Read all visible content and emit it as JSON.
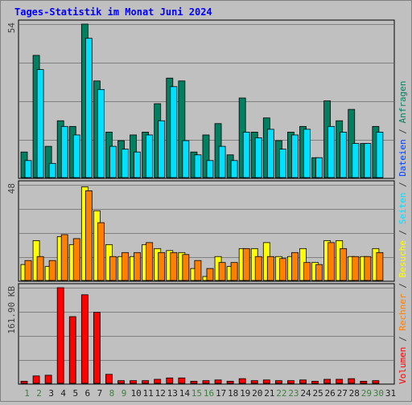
{
  "chart_data": [
    {
      "type": "bar",
      "title": "Tages-Statistik im Monat Juni 2024",
      "categories": [
        "1",
        "2",
        "3",
        "4",
        "5",
        "6",
        "7",
        "8",
        "9",
        "10",
        "11",
        "12",
        "13",
        "14",
        "15",
        "16",
        "17",
        "18",
        "19",
        "20",
        "21",
        "22",
        "23",
        "24",
        "25",
        "26",
        "27",
        "28",
        "29",
        "30",
        "31"
      ],
      "weekend_days": [
        "1",
        "2",
        "8",
        "9",
        "15",
        "16",
        "22",
        "23",
        "29",
        "30"
      ],
      "ymax_label": "54",
      "ylim": [
        0,
        54
      ],
      "series": [
        {
          "name": "Anfragen",
          "values": [
            9,
            43,
            11,
            20,
            18,
            54,
            34,
            16,
            13,
            15,
            16,
            26,
            35,
            34,
            9,
            15,
            19,
            8,
            28,
            16,
            21,
            13,
            16,
            18,
            7,
            27,
            20,
            24,
            12,
            18,
            null
          ]
        },
        {
          "name": "Dateien",
          "values": [
            6,
            38,
            5,
            18,
            15,
            49,
            31,
            11,
            10,
            9,
            15,
            20,
            32,
            13,
            8,
            6,
            11,
            6,
            16,
            14,
            17,
            10,
            15,
            17,
            7,
            18,
            16,
            12,
            12,
            16,
            null
          ]
        }
      ],
      "colors": {
        "Anfragen": "#008060",
        "Dateien": "#00e0ff"
      }
    },
    {
      "type": "bar",
      "ymax_label": "48",
      "ylim": [
        0,
        48
      ],
      "series": [
        {
          "name": "Seiten",
          "values": [
            8,
            20,
            7,
            22,
            18,
            47,
            35,
            18,
            12,
            12,
            18,
            16,
            15,
            14,
            6,
            2,
            12,
            7,
            16,
            16,
            19,
            12,
            12,
            16,
            9,
            20,
            20,
            12,
            12,
            16,
            null
          ]
        },
        {
          "name": "Besuche",
          "values": [
            10,
            12,
            10,
            23,
            21,
            45,
            29,
            12,
            14,
            14,
            19,
            14,
            14,
            13,
            10,
            6,
            9,
            9,
            16,
            12,
            12,
            11,
            14,
            9,
            8,
            19,
            16,
            12,
            12,
            14,
            null
          ]
        },
        {
          "name": "Rechner",
          "values": [
            10,
            12,
            10,
            23,
            21,
            45,
            29,
            12,
            14,
            14,
            19,
            14,
            14,
            13,
            10,
            6,
            9,
            9,
            16,
            12,
            12,
            11,
            14,
            9,
            8,
            19,
            16,
            12,
            12,
            14,
            null
          ]
        }
      ],
      "colors": {
        "Seiten": "#ffff00",
        "Besuche": "#ff8000",
        "Rechner": "#ff8000"
      }
    },
    {
      "type": "bar",
      "ymax_label": "161.90 KB",
      "ylim": [
        0,
        161.9
      ],
      "series": [
        {
          "name": "Volumen",
          "values": [
            3.5,
            12.5,
            13.7,
            161.9,
            112.9,
            149.9,
            120.2,
            15.2,
            4.5,
            4.5,
            4.5,
            6.8,
            9.1,
            9.1,
            3.5,
            4.5,
            5.7,
            3.5,
            7.9,
            4.5,
            5.7,
            4.5,
            4.5,
            5.7,
            3.5,
            6.8,
            6.8,
            7.9,
            3.5,
            4.5,
            null
          ]
        }
      ],
      "colors": {
        "Volumen": "#ff0000"
      }
    }
  ],
  "legend": [
    "Volumen",
    "/",
    "Rechner",
    "/",
    "Besuche",
    "/",
    "Seiten",
    "/",
    "Dateien",
    "/",
    "Anfragen"
  ],
  "legend_colors": [
    "#ff0000",
    "#404040",
    "#ff8000",
    "#404040",
    "#ffff00",
    "#404040",
    "#00e0ff",
    "#404040",
    "#0040ff",
    "#404040",
    "#008060"
  ],
  "style": {
    "background": "#c0c0c0",
    "plot_background": "#c0c0c0",
    "gridline": "#808080",
    "title_color": "#0000ff",
    "label_color": "#404040",
    "weekday_label_color": "#008040",
    "weekend_label_color": "#408040"
  }
}
